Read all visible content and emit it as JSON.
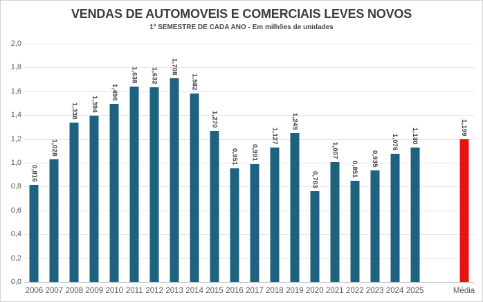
{
  "window": {
    "background": "#ffffff",
    "border_color": "#d2d2d2"
  },
  "chart_data": {
    "type": "bar",
    "title": "VENDAS DE AUTOMOVEIS E COMERCIAIS LEVES NOVOS",
    "subtitle": "1º SEMESTRE DE CADA ANO - Em milhões de unidades",
    "categories": [
      "2006",
      "2007",
      "2008",
      "2009",
      "2010",
      "2011",
      "2012",
      "2013",
      "2014",
      "2015",
      "2016",
      "2017",
      "2018",
      "2019",
      "2020",
      "2021",
      "2022",
      "2023",
      "2024",
      "2025",
      "Média"
    ],
    "values": [
      0.816,
      1.028,
      1.338,
      1.394,
      1.496,
      1.638,
      1.632,
      1.708,
      1.582,
      1.27,
      0.951,
      0.991,
      1.127,
      1.249,
      0.763,
      1.007,
      0.851,
      0.935,
      1.076,
      1.13,
      1.199
    ],
    "value_labels": [
      "0,816",
      "1,028",
      "1,338",
      "1,394",
      "1,496",
      "1,638",
      "1,632",
      "1,708",
      "1,582",
      "1,270",
      "0,951",
      "0,991",
      "1,127",
      "1,249",
      "0,763",
      "1,007",
      "0,851",
      "0,935",
      "1,076",
      "1,130",
      "1,199"
    ],
    "xlabel": "",
    "ylabel": "",
    "ylim": [
      0,
      2
    ],
    "yticks": [
      {
        "value": 0.0,
        "label": "0,0"
      },
      {
        "value": 0.2,
        "label": "0,2"
      },
      {
        "value": 0.4,
        "label": "0,4"
      },
      {
        "value": 0.6,
        "label": "0,6"
      },
      {
        "value": 0.8,
        "label": "0,8"
      },
      {
        "value": 1.0,
        "label": "1,0"
      },
      {
        "value": 1.2,
        "label": "1,2"
      },
      {
        "value": 1.4,
        "label": "1,4"
      },
      {
        "value": 1.6,
        "label": "1,6"
      },
      {
        "value": 1.8,
        "label": "1,8"
      },
      {
        "value": 2.0,
        "label": "2,0"
      }
    ],
    "grid": "horizontal",
    "grid_color": "#e6e6e6",
    "axis_line_color": "#b5b5b5",
    "tick_label_color": "#595959",
    "data_label_color": "#3d3d3d",
    "data_label_rotation": "vertical-top-to-bottom",
    "bar_color": "#1E6280",
    "highlight_category": "Média",
    "highlight_color": "#E81414",
    "gap_before_highlight": true,
    "legend": "none"
  }
}
